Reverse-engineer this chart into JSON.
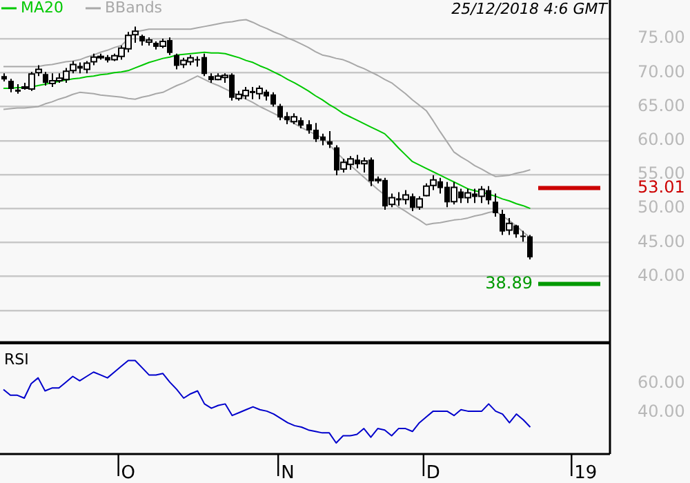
{
  "chart_data": [
    {
      "type": "candlestick",
      "legend": "top left",
      "grid": "y",
      "tick_labels": "y",
      "annotations": [
        "25/12/2018 4:6 GMT"
      ],
      "categories": [
        null,
        null,
        null,
        null,
        null,
        null,
        null,
        null,
        null,
        null,
        null,
        null,
        null,
        null,
        null,
        null,
        null,
        null,
        null,
        null,
        null,
        null,
        null,
        null,
        null,
        null,
        null,
        null,
        null,
        null,
        null,
        null,
        null,
        null,
        null,
        null,
        null,
        null,
        null,
        null,
        null,
        null,
        null,
        null,
        null,
        null,
        null,
        null,
        null,
        null,
        null,
        null,
        null,
        null,
        null,
        null,
        null,
        null,
        null,
        null,
        null,
        null,
        null,
        null,
        null,
        null,
        null,
        null,
        null,
        null,
        null,
        null,
        null,
        null,
        null,
        null,
        null,
        null,
        null,
        null,
        null,
        null,
        null,
        null,
        null,
        null,
        null,
        null
      ],
      "ylim": [
        30.3,
        80.7
      ],
      "yticks": [
        {
          "value": 35,
          "label": null
        },
        {
          "value": 40,
          "label": "40.00"
        },
        {
          "value": 45,
          "label": "45.00"
        },
        {
          "value": 50,
          "label": "50.00"
        },
        {
          "value": 55,
          "label": "55.00"
        },
        {
          "value": 60,
          "label": "60.00"
        },
        {
          "value": 65,
          "label": "65.00"
        },
        {
          "value": 70,
          "label": "70.00"
        },
        {
          "value": 75,
          "label": "75.00"
        }
      ],
      "ref_lines": [
        {
          "axis": "y",
          "value": 53.01,
          "label": "53.01",
          "color": "#cc0000"
        },
        {
          "axis": "y",
          "value": 38.89,
          "label": "38.89",
          "color": "#009900"
        }
      ],
      "ohlc": [
        [
          69.5,
          69.9,
          68.7,
          69.0
        ],
        [
          68.8,
          69.1,
          67.1,
          67.6
        ],
        [
          67.5,
          68.3,
          66.9,
          67.2
        ],
        [
          67.8,
          68.5,
          67.5,
          67.9
        ],
        [
          67.6,
          70.1,
          67.3,
          69.8
        ],
        [
          70.0,
          71.1,
          69.5,
          70.5
        ],
        [
          69.8,
          70.1,
          68.1,
          68.5
        ],
        [
          68.4,
          69.9,
          67.9,
          68.8
        ],
        [
          68.8,
          69.9,
          68.5,
          69.2
        ],
        [
          69.0,
          70.7,
          68.5,
          70.2
        ],
        [
          70.3,
          71.7,
          69.9,
          71.2
        ],
        [
          71.0,
          71.5,
          69.9,
          70.6
        ],
        [
          70.5,
          71.7,
          69.9,
          71.4
        ],
        [
          71.6,
          72.8,
          71.1,
          72.3
        ],
        [
          72.2,
          72.8,
          71.9,
          72.4
        ],
        [
          72.3,
          72.6,
          71.5,
          71.8
        ],
        [
          71.9,
          72.8,
          71.7,
          72.5
        ],
        [
          72.4,
          74.0,
          71.9,
          73.6
        ],
        [
          73.5,
          76.0,
          73.0,
          75.5
        ],
        [
          75.6,
          76.8,
          74.4,
          76.1
        ],
        [
          75.4,
          75.6,
          74.0,
          74.6
        ],
        [
          74.5,
          75.2,
          74.0,
          74.8
        ],
        [
          74.4,
          74.6,
          73.4,
          73.8
        ],
        [
          73.9,
          75.0,
          73.6,
          74.6
        ],
        [
          74.8,
          75.2,
          72.6,
          72.9
        ],
        [
          72.6,
          72.8,
          70.5,
          71.0
        ],
        [
          71.2,
          72.2,
          70.7,
          71.8
        ],
        [
          71.6,
          72.6,
          71.1,
          72.2
        ],
        [
          72.0,
          72.4,
          70.9,
          71.9
        ],
        [
          72.3,
          72.8,
          69.5,
          69.8
        ],
        [
          69.5,
          69.9,
          68.5,
          68.9
        ],
        [
          69.0,
          69.9,
          68.9,
          69.5
        ],
        [
          69.3,
          69.9,
          68.5,
          69.6
        ],
        [
          69.7,
          69.9,
          65.9,
          66.3
        ],
        [
          66.2,
          67.3,
          65.9,
          66.8
        ],
        [
          66.6,
          67.9,
          66.1,
          67.4
        ],
        [
          67.3,
          67.9,
          66.1,
          67.0
        ],
        [
          66.9,
          68.1,
          66.1,
          67.7
        ],
        [
          67.2,
          67.5,
          65.9,
          66.5
        ],
        [
          66.8,
          67.1,
          65.0,
          65.3
        ],
        [
          65.1,
          65.4,
          63.0,
          63.4
        ],
        [
          63.6,
          64.2,
          62.4,
          63.0
        ],
        [
          62.8,
          64.0,
          62.4,
          63.5
        ],
        [
          63.0,
          63.4,
          61.8,
          62.2
        ],
        [
          62.4,
          63.0,
          61.0,
          61.5
        ],
        [
          61.6,
          62.6,
          59.8,
          60.2
        ],
        [
          60.6,
          61.0,
          59.3,
          60.0
        ],
        [
          59.9,
          61.4,
          58.9,
          59.4
        ],
        [
          59.0,
          59.3,
          54.9,
          55.6
        ],
        [
          55.8,
          57.3,
          55.3,
          56.8
        ],
        [
          56.5,
          57.7,
          55.7,
          57.3
        ],
        [
          57.2,
          57.9,
          55.9,
          56.5
        ],
        [
          56.6,
          57.5,
          55.3,
          57.0
        ],
        [
          57.2,
          57.5,
          53.3,
          54.0
        ],
        [
          54.2,
          54.7,
          53.7,
          54.3
        ],
        [
          54.2,
          54.5,
          49.8,
          50.3
        ],
        [
          50.6,
          52.2,
          50.2,
          51.6
        ],
        [
          51.5,
          52.4,
          50.4,
          51.2
        ],
        [
          51.3,
          52.7,
          50.6,
          52.0
        ],
        [
          51.8,
          52.2,
          49.6,
          50.1
        ],
        [
          50.2,
          51.8,
          49.8,
          51.4
        ],
        [
          51.9,
          53.7,
          51.8,
          53.3
        ],
        [
          53.4,
          54.9,
          52.7,
          54.2
        ],
        [
          54.0,
          54.5,
          52.2,
          53.0
        ],
        [
          53.2,
          53.9,
          50.2,
          50.9
        ],
        [
          51.0,
          53.9,
          50.6,
          53.1
        ],
        [
          52.5,
          52.9,
          50.8,
          51.5
        ],
        [
          51.6,
          52.9,
          50.8,
          52.3
        ],
        [
          52.2,
          52.9,
          50.8,
          51.7
        ],
        [
          51.8,
          53.3,
          50.8,
          52.8
        ],
        [
          52.7,
          53.3,
          50.6,
          51.2
        ],
        [
          51.0,
          52.2,
          48.8,
          49.3
        ],
        [
          49.2,
          49.8,
          46.1,
          46.6
        ],
        [
          46.8,
          48.6,
          46.1,
          47.8
        ],
        [
          47.5,
          47.6,
          45.7,
          46.2
        ],
        [
          46.0,
          46.7,
          45.1,
          45.8
        ],
        [
          45.9,
          46.1,
          42.5,
          42.8
        ],
        null,
        null,
        null,
        null,
        null,
        null,
        null,
        null,
        null,
        null,
        null
      ],
      "series": [
        {
          "name": "MA20",
          "type": "line",
          "color": "#00c800",
          "values": [
            67.7,
            67.7,
            67.8,
            67.8,
            67.9,
            68.1,
            68.3,
            68.5,
            68.7,
            68.9,
            69.1,
            69.2,
            69.4,
            69.5,
            69.7,
            69.8,
            70.0,
            70.1,
            70.3,
            70.7,
            71.1,
            71.5,
            71.8,
            72.1,
            72.3,
            72.6,
            72.7,
            72.8,
            72.9,
            73.0,
            72.9,
            72.9,
            72.8,
            72.5,
            72.2,
            71.8,
            71.5,
            71.0,
            70.6,
            70.1,
            69.6,
            69.0,
            68.5,
            67.9,
            67.3,
            66.6,
            66.0,
            65.3,
            64.7,
            64.0,
            63.5,
            63.0,
            62.5,
            62.0,
            61.5,
            61.0,
            60.0,
            58.9,
            57.9,
            56.9,
            56.4,
            55.9,
            55.4,
            54.9,
            54.4,
            53.9,
            53.4,
            52.9,
            52.6,
            52.4,
            52.1,
            51.8,
            51.4,
            51.1,
            50.7,
            50.4,
            50.0,
            null,
            null,
            null,
            null,
            null,
            null,
            null,
            null,
            null,
            null,
            null
          ]
        },
        {
          "name": "BBands",
          "type": "line",
          "color": "#a8a8a8",
          "values": [
            70.9,
            70.9,
            70.9,
            70.9,
            70.9,
            70.9,
            71.1,
            71.2,
            71.4,
            71.6,
            71.7,
            71.9,
            72.3,
            72.6,
            73.0,
            73.3,
            73.7,
            74.0,
            75.0,
            76.0,
            76.2,
            76.4,
            76.4,
            76.4,
            76.4,
            76.4,
            76.4,
            76.4,
            76.6,
            76.8,
            77.0,
            77.2,
            77.4,
            77.5,
            77.7,
            77.8,
            77.4,
            76.9,
            76.5,
            76.0,
            75.6,
            75.1,
            74.7,
            74.2,
            73.7,
            73.1,
            72.6,
            72.4,
            72.1,
            71.9,
            71.5,
            71.0,
            70.6,
            70.1,
            69.6,
            69.0,
            68.5,
            67.7,
            66.9,
            66.0,
            65.2,
            64.4,
            62.9,
            61.3,
            59.8,
            58.3,
            57.6,
            57.0,
            56.3,
            55.8,
            55.2,
            54.7,
            54.8,
            54.9,
            55.2,
            55.4,
            55.7,
            null,
            null,
            null,
            null,
            null,
            null,
            null,
            null,
            null,
            null,
            null
          ]
        },
        {
          "type": "line",
          "color": "#a8a8a8",
          "values": [
            64.6,
            64.7,
            64.8,
            64.8,
            64.9,
            65.0,
            65.4,
            65.7,
            66.1,
            66.4,
            66.8,
            67.1,
            67.0,
            66.9,
            66.7,
            66.6,
            66.5,
            66.4,
            66.2,
            66.1,
            66.4,
            66.6,
            66.9,
            67.1,
            67.6,
            68.1,
            68.5,
            69.0,
            69.5,
            69.0,
            68.5,
            68.1,
            67.6,
            67.1,
            66.6,
            66.1,
            65.6,
            65.0,
            64.5,
            64.0,
            63.5,
            63.0,
            62.5,
            61.9,
            61.4,
            60.9,
            60.4,
            59.4,
            58.3,
            57.3,
            56.4,
            55.5,
            54.6,
            53.7,
            52.8,
            52.0,
            51.1,
            50.2,
            49.6,
            48.9,
            48.3,
            47.6,
            47.8,
            47.9,
            48.1,
            48.3,
            48.4,
            48.6,
            48.9,
            49.1,
            49.4,
            49.6,
            48.9,
            48.2,
            47.4,
            46.5,
            45.7,
            null,
            null,
            null,
            null,
            null,
            null,
            null,
            null,
            null,
            null,
            null
          ]
        }
      ]
    },
    {
      "type": "line",
      "title": "RSI",
      "color": "#0000cc",
      "grid": false,
      "categories": [
        null,
        null,
        null,
        null,
        null,
        null,
        null,
        null,
        null,
        null,
        null,
        null,
        null,
        null,
        null,
        null,
        null,
        null,
        "O",
        null,
        null,
        null,
        null,
        null,
        null,
        null,
        null,
        null,
        null,
        null,
        null,
        null,
        null,
        null,
        null,
        null,
        null,
        null,
        null,
        null,
        null,
        "N",
        null,
        null,
        null,
        null,
        null,
        null,
        null,
        null,
        null,
        null,
        null,
        null,
        null,
        null,
        null,
        null,
        null,
        null,
        null,
        null,
        "D",
        null,
        null,
        null,
        null,
        null,
        null,
        null,
        null,
        null,
        null,
        null,
        null,
        null,
        null,
        null,
        null,
        null,
        null,
        null,
        null,
        null,
        "19",
        null,
        null,
        null
      ],
      "ylim": [
        11.4,
        88.6
      ],
      "yticks": [
        {
          "value": 40,
          "label": "40.00"
        },
        {
          "value": 60,
          "label": "60.00"
        }
      ],
      "values": [
        56,
        52,
        52,
        50,
        60,
        64,
        55,
        57,
        57,
        61,
        65,
        62,
        65,
        68,
        66,
        64,
        68,
        72,
        76,
        76,
        71,
        66,
        66,
        67,
        61,
        56,
        50,
        53,
        55,
        46,
        43,
        45,
        46,
        38,
        40,
        42,
        44,
        42,
        41,
        39,
        36,
        33,
        31,
        30,
        28,
        27,
        26,
        26,
        19,
        24,
        24,
        25,
        29,
        23,
        29,
        28,
        24,
        29,
        29,
        27,
        33,
        37,
        41,
        41,
        41,
        38,
        42,
        41,
        41,
        41,
        46,
        41,
        39,
        33,
        39,
        35,
        30,
        null,
        null,
        null,
        null,
        null,
        null,
        null,
        null,
        null,
        null,
        null
      ]
    }
  ]
}
